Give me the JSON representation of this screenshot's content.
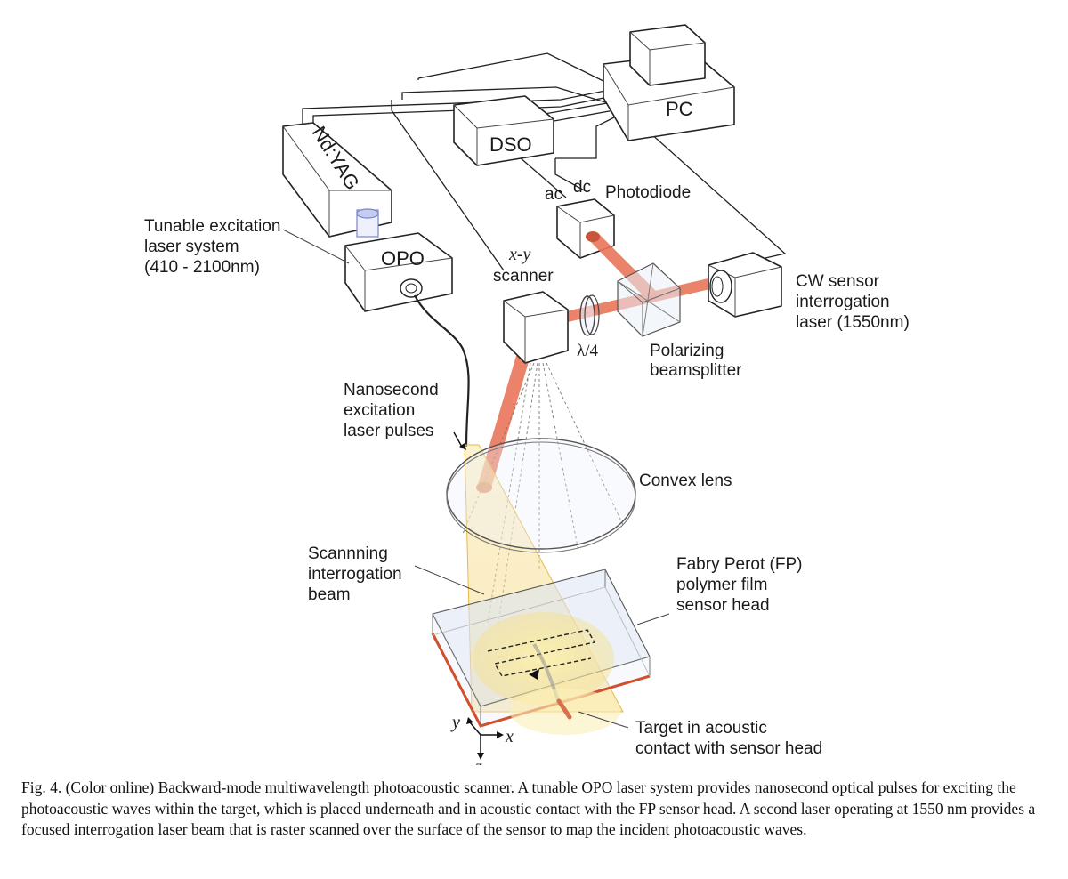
{
  "labels": {
    "pc": "PC",
    "dso": "DSO",
    "ndyag": "Nd:YAG",
    "opo": "OPO",
    "ac": "ac",
    "dc": "dc",
    "photodiode": "Photodiode",
    "tunable_1": "Tunable excitation",
    "tunable_2": "laser system",
    "tunable_3": "(410 - 2100nm)",
    "scanner_1": "x-y",
    "scanner_2": "scanner",
    "cw_1": "CW sensor",
    "cw_2": "interrogation",
    "cw_3": "laser (1550nm)",
    "lambda4": "λ/4",
    "pbs_1": "Polarizing",
    "pbs_2": "beamsplitter",
    "nano_1": "Nanosecond",
    "nano_2": "excitation",
    "nano_3": "laser pulses",
    "convex": "Convex lens",
    "scan_1": "Scannning",
    "scan_2": "interrogation",
    "scan_3": "beam",
    "fp_1": "Fabry Perot (FP)",
    "fp_2": "polymer film",
    "fp_3": "sensor head",
    "target_1": "Target in acoustic",
    "target_2": "contact with sensor head",
    "axis_x": "x",
    "axis_y": "y",
    "axis_z": "z"
  },
  "colors": {
    "interrogation_beam": "#e8765a",
    "excitation_beam": "#f6d77a",
    "sensor_film": "#c9d6ee",
    "sensor_edge": "#d0502e",
    "pulse_fiber": "#9aa7d9"
  },
  "caption": "Fig. 4.    (Color online) Backward-mode multiwavelength photoacoustic scanner. A tunable OPO laser system provides nanosecond optical pulses for exciting the photoacoustic waves within the target, which is placed underneath and in acoustic contact with the FP sensor head. A second laser operating at 1550 nm provides a focused interrogation laser beam that is raster scanned over the surface of the sensor to map the incident photoacoustic waves."
}
